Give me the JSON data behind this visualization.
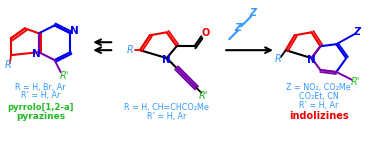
{
  "figsize": [
    3.78,
    1.43
  ],
  "dpi": 100,
  "bg": "white",
  "left_label1": "R = H, Br, Ar",
  "left_label2": "R’ = H, Ar",
  "left_label3": "pyrrolo[1,2-a]",
  "left_label4": "pyrazines",
  "center_label1": "R = H, CH=CHCO₂Me",
  "center_label2": "R’ = H, Ar",
  "right_label1": "Z = NO₂, CO₂Me",
  "right_label2": "CO₂Et, CN",
  "right_label3": "R’ = H, Ar",
  "right_label4": "indolizines",
  "colors": {
    "cyan": "#3399FF",
    "green": "#22BB22",
    "red": "#EE0000",
    "blue": "#0000EE",
    "purple": "#7700AA",
    "black": "#000000"
  }
}
